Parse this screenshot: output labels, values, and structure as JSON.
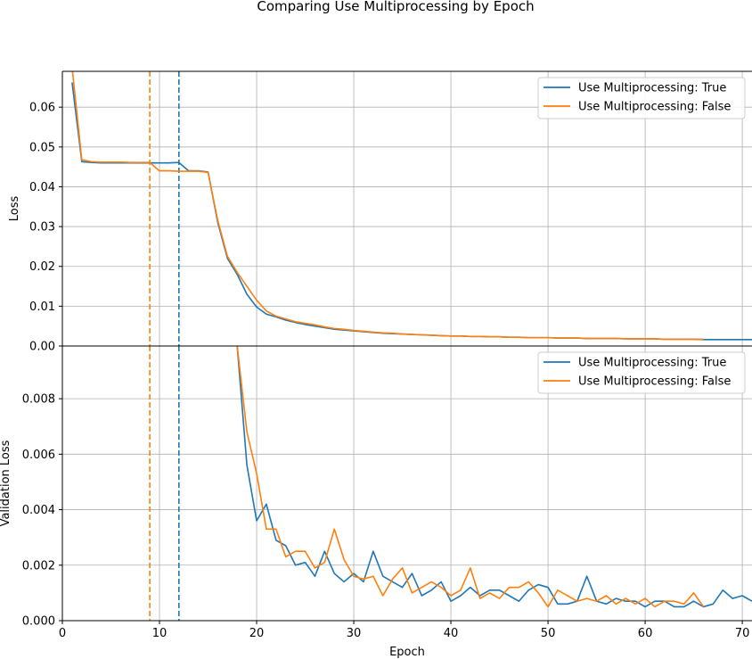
{
  "chart_data": {
    "type": "line",
    "title": "Comparing Use Multiprocessing by Epoch",
    "xlabel": "Epoch",
    "xlim": [
      0,
      71
    ],
    "xticks": [
      0,
      10,
      20,
      30,
      40,
      50,
      60,
      70
    ],
    "grid": true,
    "colors": {
      "true": "#1f77b4",
      "false": "#ff7f0e"
    },
    "panels": [
      {
        "ylabel": "Loss",
        "ylim": [
          0,
          0.069
        ],
        "yticks": [
          "0.00",
          "0.01",
          "0.02",
          "0.03",
          "0.04",
          "0.05",
          "0.06"
        ],
        "legend_position": "top-right",
        "vlines": [
          {
            "x": 12,
            "series": "Use Multiprocessing: True",
            "color": "#1f77b4",
            "style": "dashed"
          },
          {
            "x": 9,
            "series": "Use Multiprocessing: False",
            "color": "#ff7f0e",
            "style": "dashed"
          }
        ],
        "series": [
          {
            "name": "Use Multiprocessing: True",
            "color": "#1f77b4",
            "x": [
              1,
              2,
              3,
              4,
              5,
              6,
              7,
              8,
              9,
              10,
              11,
              12,
              13,
              14,
              15,
              16,
              17,
              18,
              19,
              20,
              21,
              22,
              23,
              24,
              25,
              26,
              27,
              28,
              29,
              30,
              31,
              32,
              33,
              34,
              35,
              36,
              37,
              38,
              39,
              40,
              41,
              42,
              43,
              44,
              45,
              46,
              47,
              48,
              49,
              50,
              51,
              52,
              53,
              54,
              55,
              56,
              57,
              58,
              59,
              60,
              61,
              62,
              63,
              64,
              65,
              66,
              67,
              68,
              69,
              70,
              71
            ],
            "values": [
              0.0662,
              0.0463,
              0.0461,
              0.046,
              0.046,
              0.046,
              0.046,
              0.046,
              0.046,
              0.046,
              0.046,
              0.0461,
              0.044,
              0.044,
              0.0437,
              0.031,
              0.022,
              0.018,
              0.013,
              0.0098,
              0.008,
              0.0073,
              0.0065,
              0.0059,
              0.0054,
              0.005,
              0.0046,
              0.0042,
              0.004,
              0.0038,
              0.0036,
              0.0034,
              0.0032,
              0.0031,
              0.003,
              0.0029,
              0.0028,
              0.0027,
              0.0026,
              0.0025,
              0.0025,
              0.0024,
              0.0024,
              0.0023,
              0.0023,
              0.0022,
              0.0022,
              0.0021,
              0.0021,
              0.0021,
              0.002,
              0.002,
              0.002,
              0.0019,
              0.0019,
              0.0019,
              0.0019,
              0.0018,
              0.0018,
              0.0018,
              0.0018,
              0.0017,
              0.0017,
              0.0017,
              0.0017,
              0.0016,
              0.0016,
              0.0016,
              0.0016,
              0.0016,
              0.0016
            ]
          },
          {
            "name": "Use Multiprocessing: False",
            "color": "#ff7f0e",
            "x": [
              1,
              2,
              3,
              4,
              5,
              6,
              7,
              8,
              9,
              10,
              11,
              12,
              13,
              14,
              15,
              16,
              17,
              18,
              19,
              20,
              21,
              22,
              23,
              24,
              25,
              26,
              27,
              28,
              29,
              30,
              31,
              32,
              33,
              34,
              35,
              36,
              37,
              38,
              39,
              40,
              41,
              42,
              43,
              44,
              45,
              46,
              47,
              48,
              49,
              50,
              51,
              52,
              53,
              54,
              55,
              56,
              57,
              58,
              59,
              60,
              61,
              62,
              63,
              64,
              65,
              66
            ],
            "values": [
              0.07,
              0.0468,
              0.0463,
              0.0462,
              0.0462,
              0.0462,
              0.0461,
              0.0461,
              0.0461,
              0.044,
              0.044,
              0.0439,
              0.0439,
              0.0439,
              0.0436,
              0.0315,
              0.0225,
              0.0185,
              0.015,
              0.0115,
              0.0088,
              0.0075,
              0.0068,
              0.0061,
              0.0057,
              0.0053,
              0.0048,
              0.0044,
              0.0042,
              0.0039,
              0.0037,
              0.0035,
              0.0033,
              0.0032,
              0.003,
              0.0029,
              0.0028,
              0.0027,
              0.0026,
              0.0025,
              0.0025,
              0.0024,
              0.0024,
              0.0023,
              0.0023,
              0.0022,
              0.0022,
              0.0021,
              0.0021,
              0.0021,
              0.002,
              0.002,
              0.002,
              0.0019,
              0.0019,
              0.0019,
              0.0019,
              0.0018,
              0.0018,
              0.0018,
              0.0018,
              0.0017,
              0.0017,
              0.0017,
              0.0017,
              0.0017
            ]
          }
        ]
      },
      {
        "ylabel": "Validation Loss",
        "ylim": [
          0,
          0.0099
        ],
        "yticks": [
          "0.000",
          "0.002",
          "0.004",
          "0.006",
          "0.008"
        ],
        "legend_position": "top-right",
        "vlines": [
          {
            "x": 12,
            "series": "Use Multiprocessing: True",
            "color": "#1f77b4",
            "style": "dashed"
          },
          {
            "x": 9,
            "series": "Use Multiprocessing: False",
            "color": "#ff7f0e",
            "style": "dashed"
          }
        ],
        "series": [
          {
            "name": "Use Multiprocessing: True",
            "color": "#1f77b4",
            "x": [
              18,
              19,
              20,
              21,
              22,
              23,
              24,
              25,
              26,
              27,
              28,
              29,
              30,
              31,
              32,
              33,
              34,
              35,
              36,
              37,
              38,
              39,
              40,
              41,
              42,
              43,
              44,
              45,
              46,
              47,
              48,
              49,
              50,
              51,
              52,
              53,
              54,
              55,
              56,
              57,
              58,
              59,
              60,
              61,
              62,
              63,
              64,
              65,
              66,
              67,
              68,
              69,
              70,
              71
            ],
            "values": [
              0.0099,
              0.0056,
              0.0036,
              0.0042,
              0.0029,
              0.0027,
              0.002,
              0.0021,
              0.0016,
              0.0025,
              0.0017,
              0.0014,
              0.0017,
              0.0014,
              0.0025,
              0.0016,
              0.0014,
              0.0012,
              0.0017,
              0.0009,
              0.0011,
              0.0014,
              0.0007,
              0.0009,
              0.0012,
              0.0009,
              0.0011,
              0.0011,
              0.0009,
              0.0007,
              0.0011,
              0.0013,
              0.0012,
              0.0006,
              0.0006,
              0.0007,
              0.0016,
              0.0007,
              0.0006,
              0.0008,
              0.0007,
              0.0007,
              0.0005,
              0.0007,
              0.0007,
              0.0005,
              0.0005,
              0.0007,
              0.0005,
              0.0006,
              0.0011,
              0.0008,
              0.0009,
              0.0007
            ]
          },
          {
            "name": "Use Multiprocessing: False",
            "color": "#ff7f0e",
            "x": [
              18,
              19,
              20,
              21,
              22,
              23,
              24,
              25,
              26,
              27,
              28,
              29,
              30,
              31,
              32,
              33,
              34,
              35,
              36,
              37,
              38,
              39,
              40,
              41,
              42,
              43,
              44,
              45,
              46,
              47,
              48,
              49,
              50,
              51,
              52,
              53,
              54,
              55,
              56,
              57,
              58,
              59,
              60,
              61,
              62,
              63,
              64,
              65,
              66
            ],
            "values": [
              0.0099,
              0.0068,
              0.0053,
              0.0033,
              0.0033,
              0.0023,
              0.0025,
              0.0025,
              0.0019,
              0.0021,
              0.0033,
              0.0022,
              0.0016,
              0.0015,
              0.0016,
              0.0009,
              0.0015,
              0.0019,
              0.001,
              0.0012,
              0.0014,
              0.0012,
              0.0009,
              0.0011,
              0.0019,
              0.0008,
              0.001,
              0.0008,
              0.0012,
              0.0012,
              0.0014,
              0.001,
              0.0005,
              0.0011,
              0.0009,
              0.0007,
              0.0008,
              0.0007,
              0.0009,
              0.0006,
              0.0008,
              0.0006,
              0.0008,
              0.0005,
              0.0007,
              0.0007,
              0.0006,
              0.001,
              0.0005
            ]
          }
        ]
      }
    ]
  }
}
